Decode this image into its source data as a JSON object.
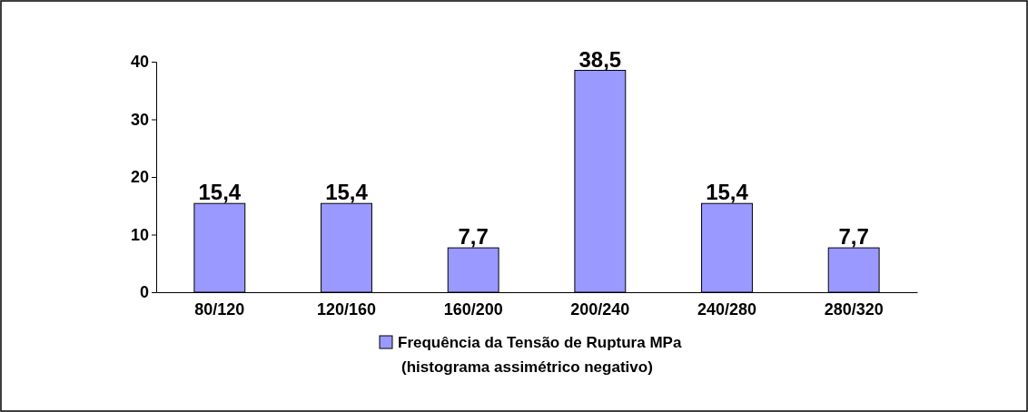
{
  "chart_data": {
    "type": "bar",
    "categories": [
      "80/120",
      "120/160",
      "160/200",
      "200/240",
      "240/280",
      "280/320"
    ],
    "series": [
      {
        "name": "Frequência da Tensão de Ruptura MPa\n(histograma assimétrico negativo)",
        "color": "#9999ff",
        "values": [
          15.4,
          15.4,
          7.7,
          38.5,
          15.4,
          7.7
        ],
        "value_labels": [
          "15,4",
          "15,4",
          "7,7",
          "38,5",
          "15,4",
          "7,7"
        ]
      }
    ],
    "ylim": [
      0,
      40
    ],
    "yticks": [
      0,
      10,
      20,
      30,
      40
    ],
    "grid": false,
    "legend": "bottom"
  }
}
